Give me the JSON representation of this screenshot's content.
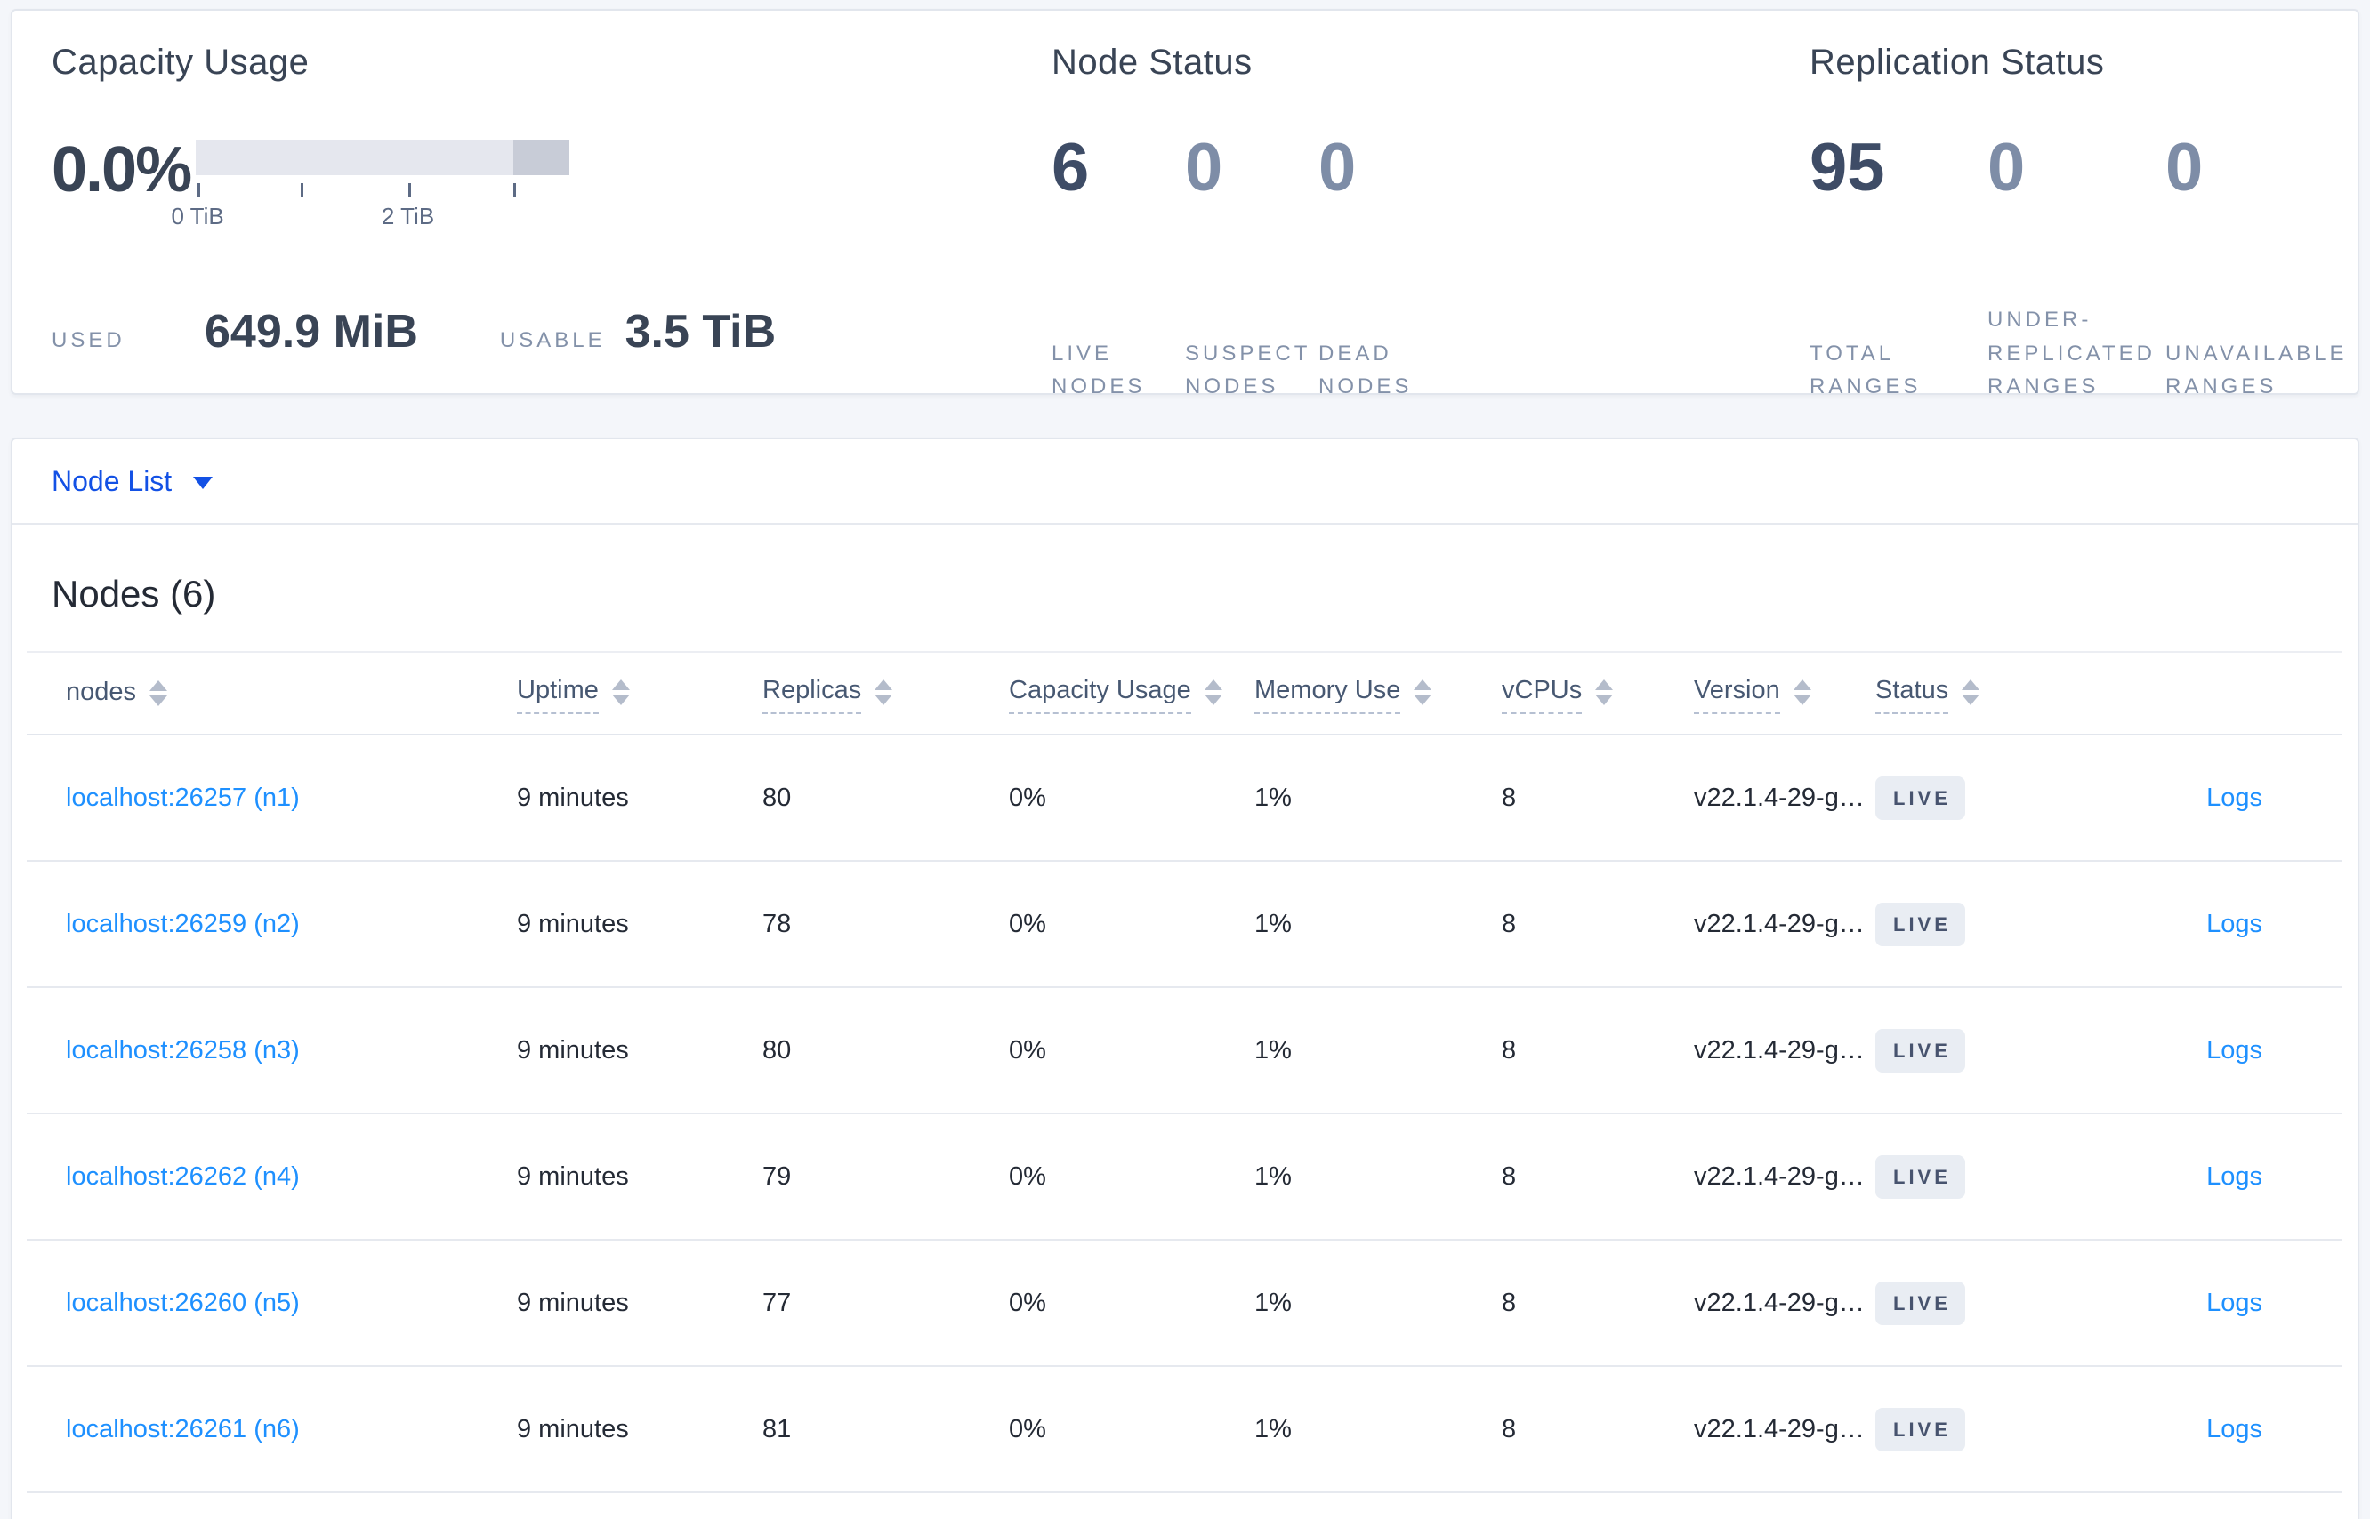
{
  "summary": {
    "capacity": {
      "title": "Capacity Usage",
      "percent": "0.0%",
      "tick_label_0": "0 TiB",
      "tick_label_2": "2 TiB",
      "used_label": "USED",
      "used_value": "649.9 MiB",
      "usable_label": "USABLE",
      "usable_value": "3.5 TiB"
    },
    "node_status": {
      "title": "Node Status",
      "stats": [
        {
          "value": "6",
          "label": "LIVE NODES"
        },
        {
          "value": "0",
          "label": "SUSPECT NODES"
        },
        {
          "value": "0",
          "label": "DEAD NODES"
        }
      ]
    },
    "replication": {
      "title": "Replication Status",
      "stats": [
        {
          "value": "95",
          "label": "TOTAL RANGES"
        },
        {
          "value": "0",
          "label": "UNDER-REPLICATED RANGES"
        },
        {
          "value": "0",
          "label": "UNAVAILABLE RANGES"
        }
      ]
    }
  },
  "view_selector": {
    "label": "Node List"
  },
  "nodes": {
    "heading": "Nodes (6)",
    "columns": [
      {
        "label": "nodes"
      },
      {
        "label": "Uptime"
      },
      {
        "label": "Replicas"
      },
      {
        "label": "Capacity Usage"
      },
      {
        "label": "Memory Use"
      },
      {
        "label": "vCPUs"
      },
      {
        "label": "Version"
      },
      {
        "label": "Status"
      }
    ],
    "rows": [
      {
        "address": "localhost:26257 (n1)",
        "uptime": "9 minutes",
        "replicas": "80",
        "capacity": "0%",
        "memory": "1%",
        "vcpus": "8",
        "version": "v22.1.4-29-g…",
        "status": "LIVE",
        "logs_label": "Logs"
      },
      {
        "address": "localhost:26259 (n2)",
        "uptime": "9 minutes",
        "replicas": "78",
        "capacity": "0%",
        "memory": "1%",
        "vcpus": "8",
        "version": "v22.1.4-29-g…",
        "status": "LIVE",
        "logs_label": "Logs"
      },
      {
        "address": "localhost:26258 (n3)",
        "uptime": "9 minutes",
        "replicas": "80",
        "capacity": "0%",
        "memory": "1%",
        "vcpus": "8",
        "version": "v22.1.4-29-g…",
        "status": "LIVE",
        "logs_label": "Logs"
      },
      {
        "address": "localhost:26262 (n4)",
        "uptime": "9 minutes",
        "replicas": "79",
        "capacity": "0%",
        "memory": "1%",
        "vcpus": "8",
        "version": "v22.1.4-29-g…",
        "status": "LIVE",
        "logs_label": "Logs"
      },
      {
        "address": "localhost:26260 (n5)",
        "uptime": "9 minutes",
        "replicas": "77",
        "capacity": "0%",
        "memory": "1%",
        "vcpus": "8",
        "version": "v22.1.4-29-g…",
        "status": "LIVE",
        "logs_label": "Logs"
      },
      {
        "address": "localhost:26261 (n6)",
        "uptime": "9 minutes",
        "replicas": "81",
        "capacity": "0%",
        "memory": "1%",
        "vcpus": "8",
        "version": "v22.1.4-29-g…",
        "status": "LIVE",
        "logs_label": "Logs"
      }
    ]
  },
  "colors": {
    "link_blue": "#1e90ff",
    "selector_blue": "#1351e5",
    "badge_bg": "#e9edf3",
    "dark_slate": "#394455",
    "muted_slate": "#8391a9"
  }
}
